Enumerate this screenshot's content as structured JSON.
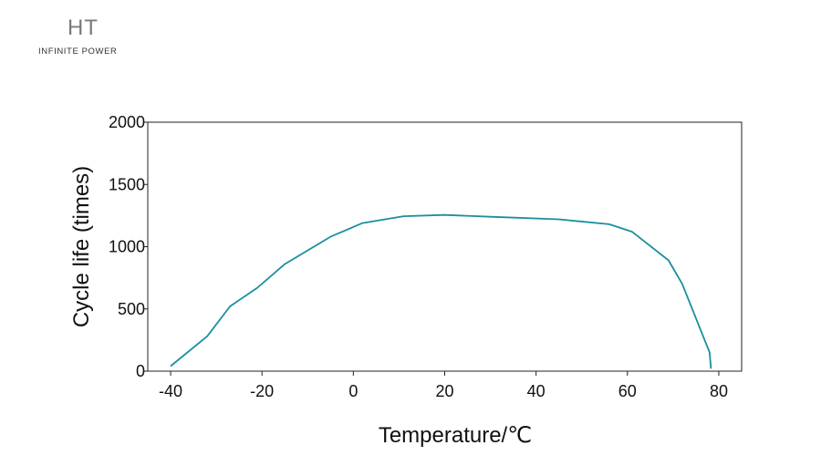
{
  "logo": {
    "mark": "HT",
    "tagline": "INFINITE POWER"
  },
  "chart_data": {
    "type": "line",
    "title": "",
    "xlabel": "Temperature/℃",
    "ylabel": "Cycle life (times)",
    "xlim": [
      -45,
      85
    ],
    "ylim": [
      0,
      2000
    ],
    "xticks": [
      -40,
      -20,
      0,
      20,
      40,
      60,
      80
    ],
    "yticks": [
      0,
      500,
      1000,
      1500,
      2000
    ],
    "grid": false,
    "legend": "none",
    "series": [
      {
        "color": "#1a8f9e",
        "x": [
          -40,
          -32,
          -27,
          -21,
          -15,
          -5,
          2,
          11,
          20,
          30,
          45,
          56,
          61,
          69,
          72,
          78,
          78.3
        ],
        "y": [
          40,
          280,
          520,
          670,
          860,
          1080,
          1190,
          1245,
          1255,
          1240,
          1220,
          1180,
          1120,
          890,
          700,
          150,
          20
        ]
      }
    ]
  }
}
